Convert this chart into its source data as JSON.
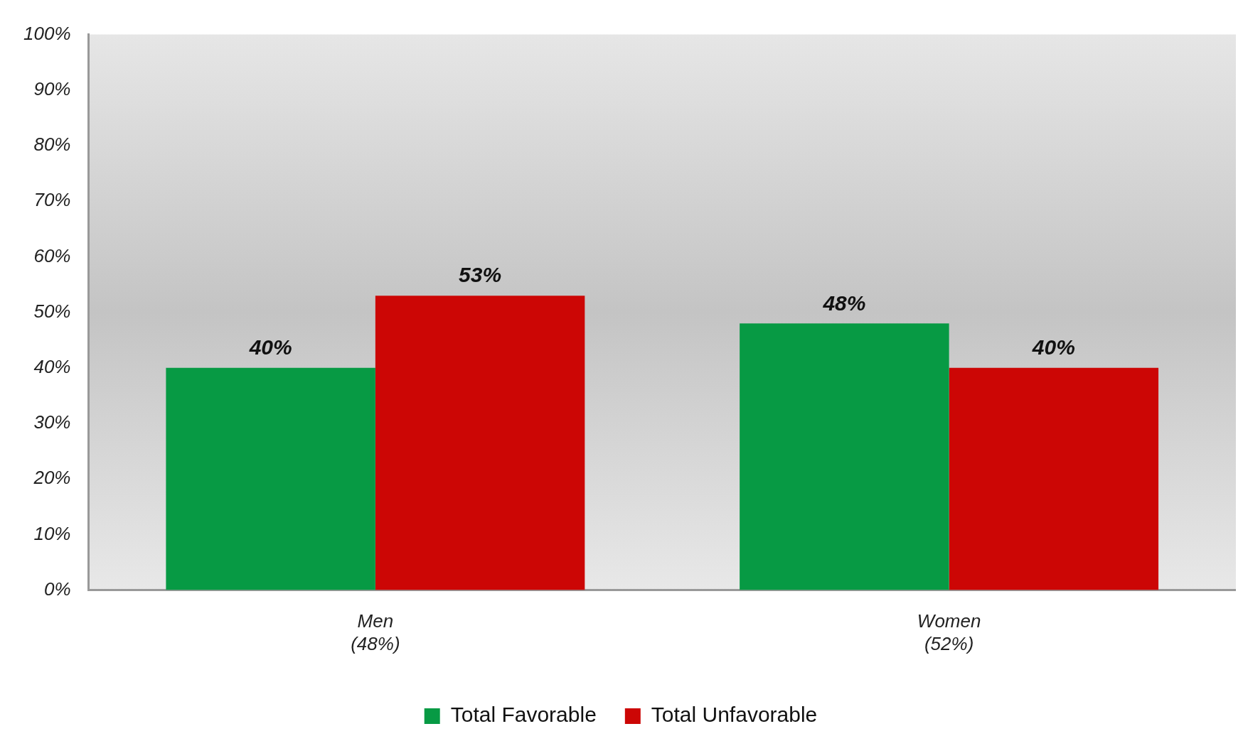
{
  "chart_data": {
    "type": "bar",
    "categories": [
      "Men\n(48%)",
      "Women\n(52%)"
    ],
    "series": [
      {
        "name": "Total Favorable",
        "color": "#079a44",
        "values": [
          40,
          48
        ]
      },
      {
        "name": "Total Unfavorable",
        "color": "#cc0605",
        "values": [
          53,
          40
        ]
      }
    ],
    "ylim": [
      0,
      100
    ],
    "yticks": [
      {
        "value": 0,
        "label": "0%"
      },
      {
        "value": 10,
        "label": "10%"
      },
      {
        "value": 20,
        "label": "20%"
      },
      {
        "value": 30,
        "label": "30%"
      },
      {
        "value": 40,
        "label": "40%"
      },
      {
        "value": 50,
        "label": "50%"
      },
      {
        "value": 60,
        "label": "60%"
      },
      {
        "value": 70,
        "label": "70%"
      },
      {
        "value": 80,
        "label": "80%"
      },
      {
        "value": 90,
        "label": "90%"
      },
      {
        "value": 100,
        "label": "100%"
      }
    ],
    "value_labels": [
      [
        "40%",
        "48%"
      ],
      [
        "53%",
        "40%"
      ]
    ],
    "grid": false,
    "legend": "bottom"
  }
}
